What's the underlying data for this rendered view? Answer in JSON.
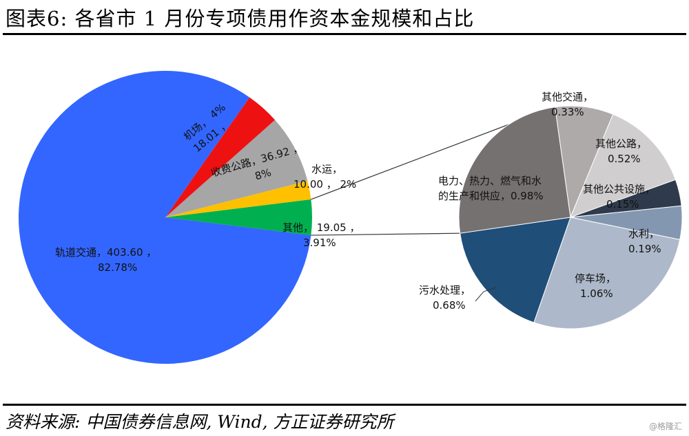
{
  "figure": {
    "title": "图表6:  各省市 1 月份专项债用作资本金规模和占比",
    "source": "资料来源: 中国债券信息网, Wind, 方正证券研究所",
    "watermark": "@格隆汇"
  },
  "chart_data": [
    {
      "type": "pie",
      "name": "main",
      "slices": [
        {
          "label": "轨道交通",
          "value": 403.6,
          "percent_text": "82.78%",
          "value_text": "403.60",
          "color": "#3366ff"
        },
        {
          "label": "机场",
          "value": 18.01,
          "percent_text": "4%",
          "value_text": "18.01",
          "color": "#ee1111"
        },
        {
          "label": "收费公路",
          "value": 36.92,
          "percent_text": "8%",
          "value_text": "36.92",
          "color": "#a6a6a6"
        },
        {
          "label": "水运",
          "value": 10.0,
          "percent_text": "2%",
          "value_text": "10.00",
          "color": "#ffc000"
        },
        {
          "label": "其他",
          "value": 19.05,
          "percent_text": "3.91%",
          "value_text": "19.05",
          "color": "#00b050"
        }
      ]
    },
    {
      "type": "pie",
      "name": "breakdown-of-其他",
      "slices": [
        {
          "label": "其他交通",
          "percent": 0.33,
          "percent_text": "0.33%",
          "color": "#aeaaaa"
        },
        {
          "label": "其他公路",
          "percent": 0.52,
          "percent_text": "0.52%",
          "color": "#d0cece"
        },
        {
          "label": "其他公共设施",
          "percent": 0.15,
          "percent_text": "0.15%",
          "color": "#2f3b4c"
        },
        {
          "label": "水利",
          "percent": 0.19,
          "percent_text": "0.19%",
          "color": "#8497b0"
        },
        {
          "label": "停车场",
          "percent": 1.06,
          "percent_text": "1.06%",
          "color": "#adb9ca"
        },
        {
          "label": "污水处理",
          "percent": 0.68,
          "percent_text": "0.68%",
          "color": "#1f4e79"
        },
        {
          "label": "电力、热力、燃气和水的生产和供应",
          "percent": 0.98,
          "percent_text": "0.98%",
          "color": "#767171"
        }
      ]
    }
  ]
}
